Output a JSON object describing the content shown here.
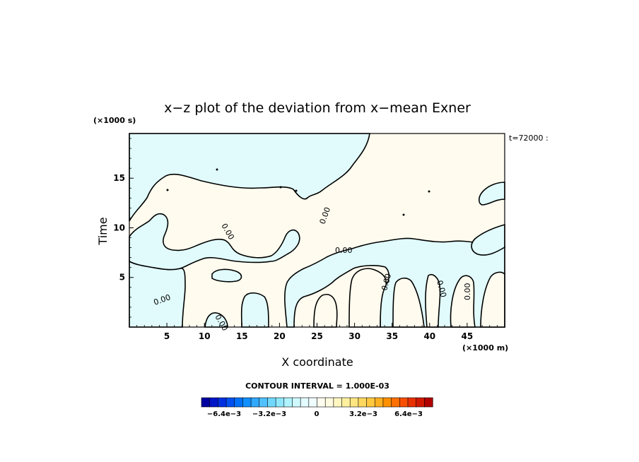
{
  "chart_data": {
    "type": "heatmap",
    "title": "x−z plot of the deviation from x−mean Exner",
    "xlabel": "X coordinate",
    "ylabel": "Time",
    "x_unit": "(×1000 m)",
    "y_unit": "(×1000 s)",
    "time_label": "t=72000 :",
    "xlim": [
      0,
      50
    ],
    "ylim": [
      0,
      19.5
    ],
    "x_ticks": [
      5,
      10,
      15,
      20,
      25,
      30,
      35,
      40,
      45
    ],
    "y_ticks": [
      5,
      10,
      15
    ],
    "contour_interval_text": "CONTOUR INTERVAL = 1.000E-03",
    "contour_labels": [
      "0.00",
      "0.00",
      "0.00",
      "0.00",
      "0.00",
      "0.00",
      "0.00",
      "0.00"
    ],
    "colorbar": {
      "ticks": [
        "−6.4e−3",
        "−3.2e−3",
        "0",
        "3.2e−3",
        "6.4e−3"
      ],
      "colors": [
        "#0000a0",
        "#0014c8",
        "#0030e0",
        "#0050f0",
        "#0070f8",
        "#1090ff",
        "#30a8ff",
        "#50c0ff",
        "#70d8ff",
        "#90e8ff",
        "#b0f4ff",
        "#cff8ff",
        "#e4fbff",
        "#f0fdff",
        "#fffdf0",
        "#fffbe0",
        "#fff6c0",
        "#fff0a0",
        "#ffe680",
        "#ffd860",
        "#ffc840",
        "#ffb020",
        "#ff9000",
        "#ff7000",
        "#f85000",
        "#e83000",
        "#d01800",
        "#b00000"
      ]
    },
    "colors": {
      "positive_fill": "#fffcef",
      "negative_fill": "#e1fbfd",
      "contour": "#000000"
    }
  }
}
